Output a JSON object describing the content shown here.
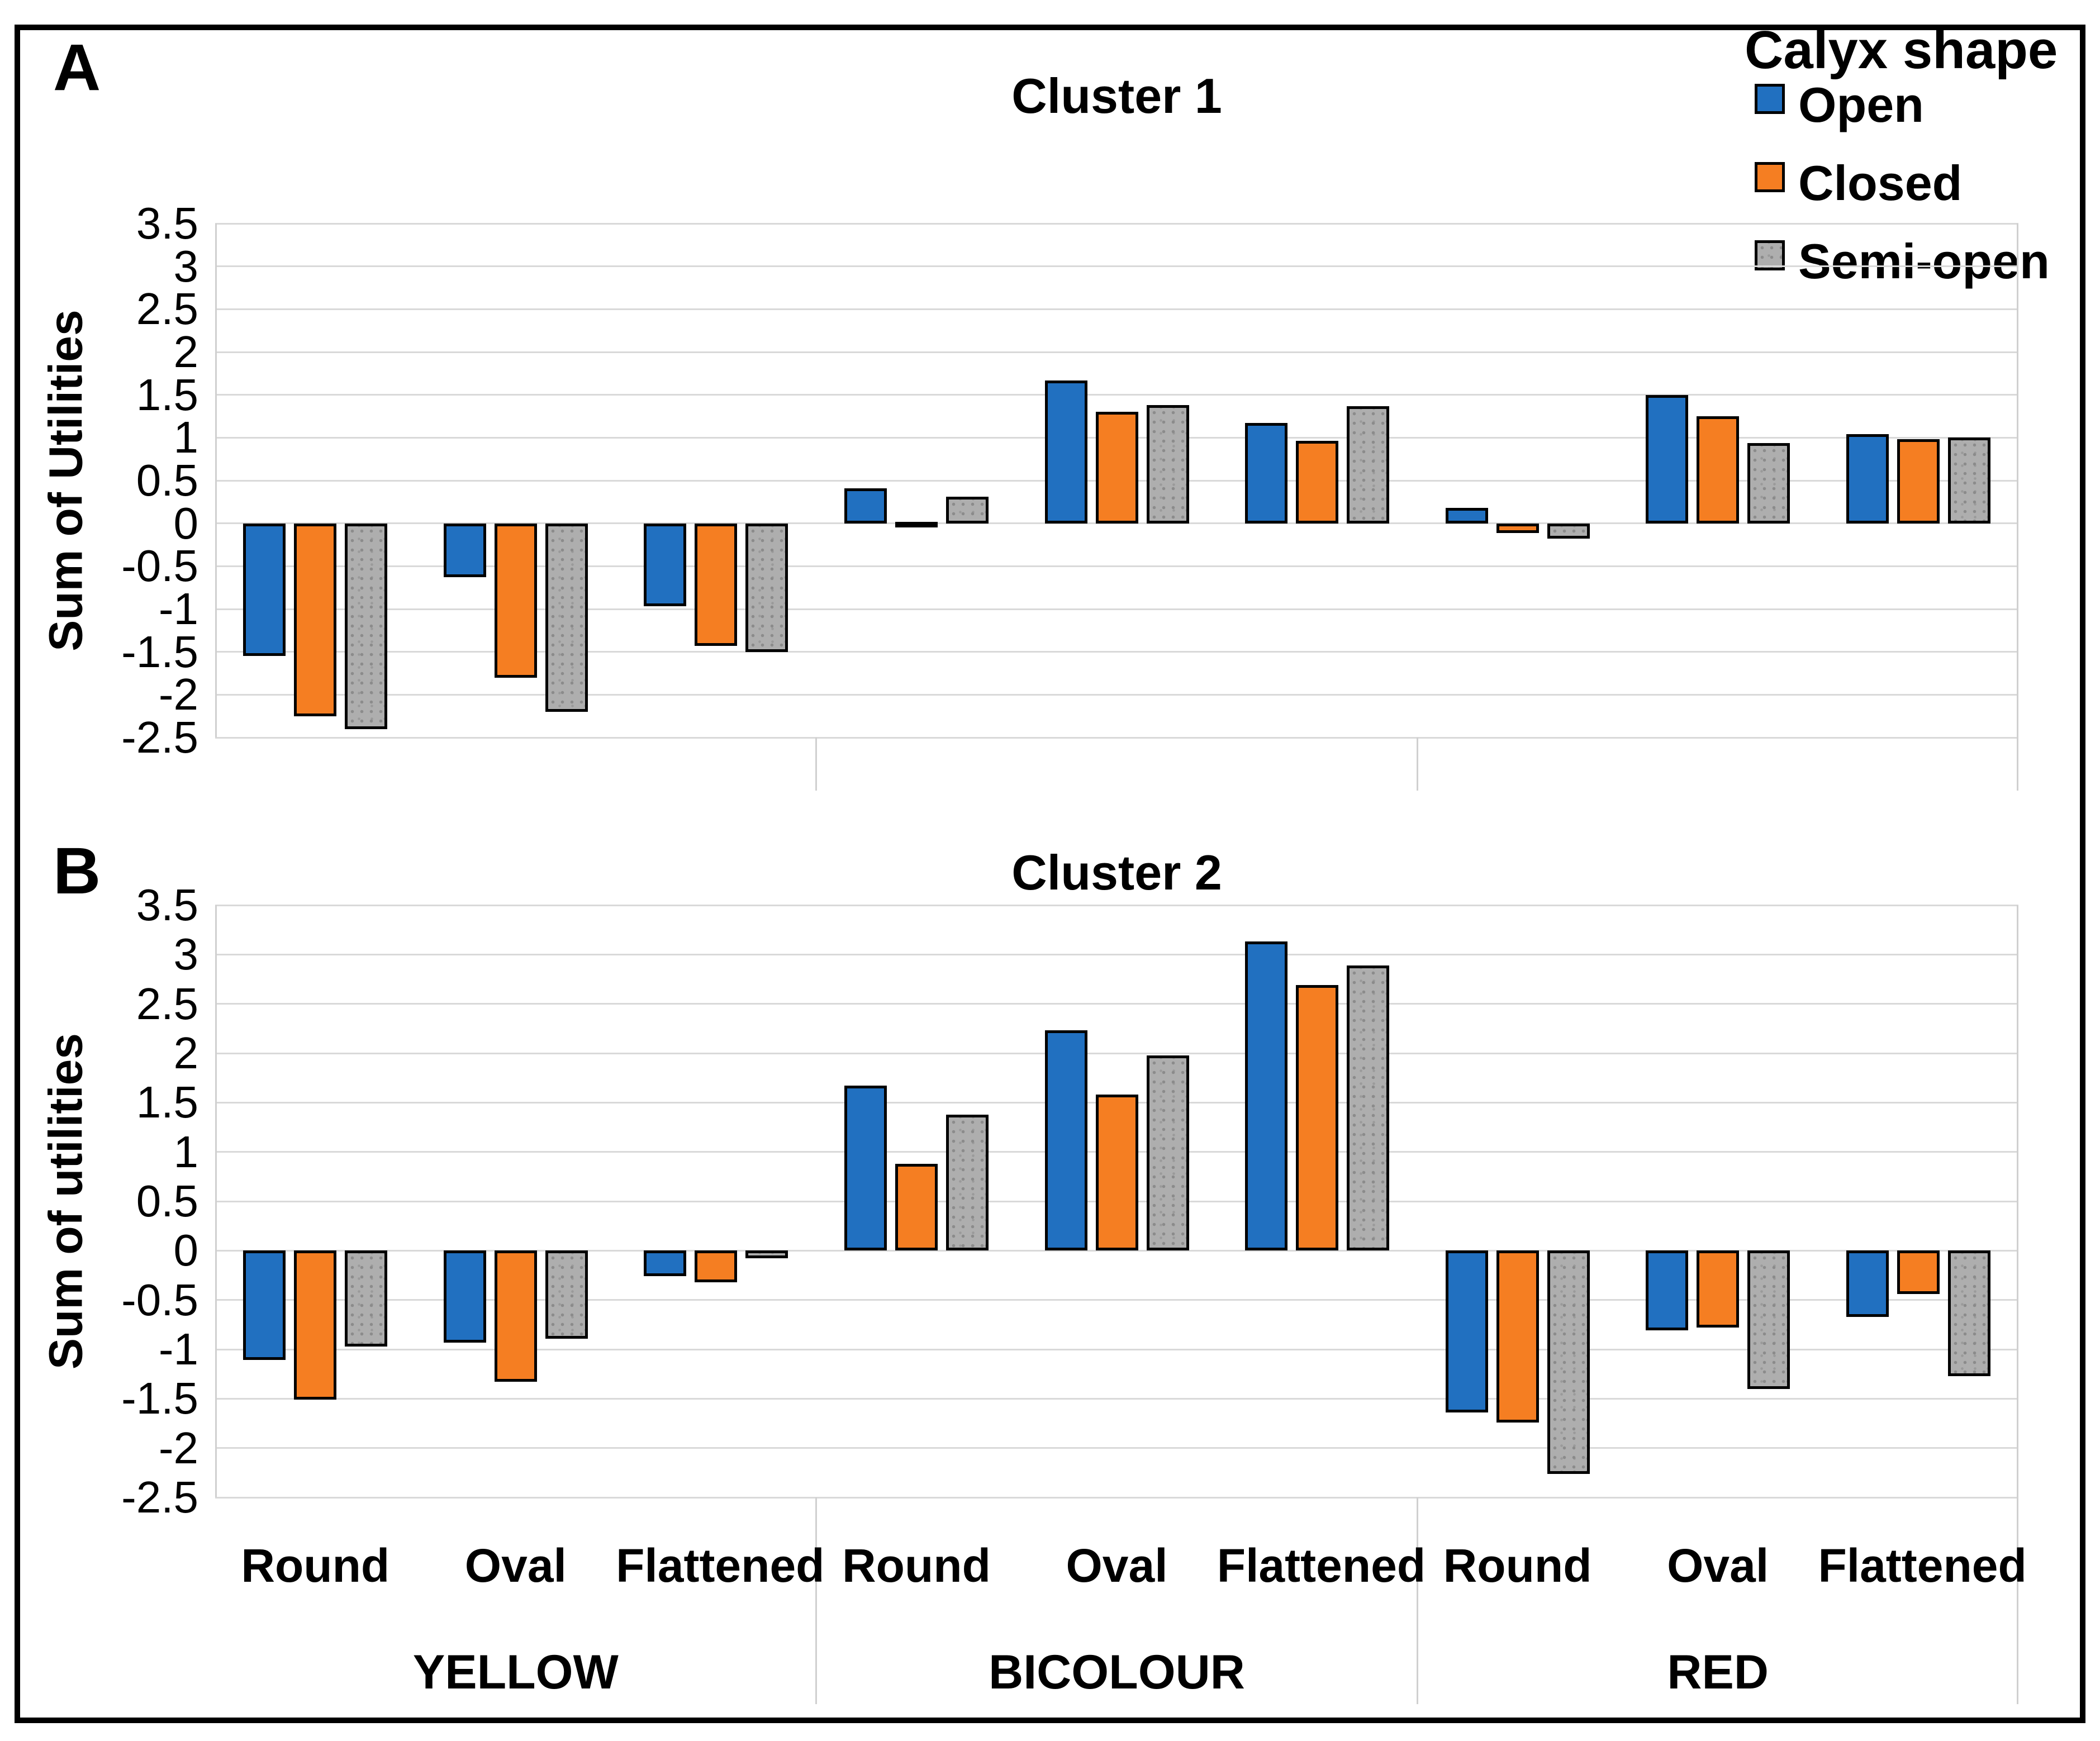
{
  "figure": {
    "panel_letters": [
      "A",
      "B"
    ],
    "legend": {
      "title": "Calyx shape",
      "items": [
        {
          "label": "Open",
          "color": "#2170c0",
          "pattern": "solid"
        },
        {
          "label": "Closed",
          "color": "#f57e22",
          "pattern": "solid"
        },
        {
          "label": "Semi-open",
          "color": "#aeaeae",
          "pattern": "dots"
        }
      ]
    },
    "colors": {
      "open_blue": "#2170c0",
      "closed_orange": "#f57e22",
      "semi_open_gray": "#aeaeae",
      "gridline": "#d9d9d9",
      "bar_border": "#000000"
    }
  },
  "chart_data": [
    {
      "type": "bar",
      "title": "Cluster 1",
      "ylabel": "Sum of Utilities",
      "ylim": [
        -2.5,
        3.5
      ],
      "ytick_step": 0.5,
      "grid": "horizontal",
      "legend_position": "top-right",
      "groups": [
        "YELLOW",
        "BICOLOUR",
        "RED"
      ],
      "categories": [
        "Round",
        "Oval",
        "Flattened"
      ],
      "series": [
        {
          "name": "Open",
          "values": [
            -1.55,
            -0.63,
            -0.97,
            0.41,
            1.67,
            1.17,
            0.18,
            1.5,
            1.04
          ]
        },
        {
          "name": "Closed",
          "values": [
            -2.25,
            -1.8,
            -1.43,
            0.02,
            1.3,
            0.96,
            -0.11,
            1.25,
            0.98
          ]
        },
        {
          "name": "Semi-open",
          "values": [
            -2.4,
            -2.2,
            -1.5,
            0.31,
            1.38,
            1.37,
            -0.18,
            0.94,
            1.0
          ]
        }
      ]
    },
    {
      "type": "bar",
      "title": "Cluster 2",
      "ylabel": "Sum of utilities",
      "ylim": [
        -2.5,
        3.5
      ],
      "ytick_step": 0.5,
      "grid": "horizontal",
      "legend_position": "none",
      "groups": [
        "YELLOW",
        "BICOLOUR",
        "RED"
      ],
      "categories": [
        "Round",
        "Oval",
        "Flattened"
      ],
      "series": [
        {
          "name": "Open",
          "values": [
            -1.11,
            -0.93,
            -0.26,
            1.67,
            2.23,
            3.13,
            -1.64,
            -0.81,
            -0.67
          ]
        },
        {
          "name": "Closed",
          "values": [
            -1.51,
            -1.33,
            -0.32,
            0.88,
            1.58,
            2.69,
            -1.74,
            -0.78,
            -0.44
          ]
        },
        {
          "name": "Semi-open",
          "values": [
            -0.97,
            -0.89,
            -0.08,
            1.38,
            1.98,
            2.89,
            -2.26,
            -1.4,
            -1.27
          ]
        }
      ]
    }
  ]
}
